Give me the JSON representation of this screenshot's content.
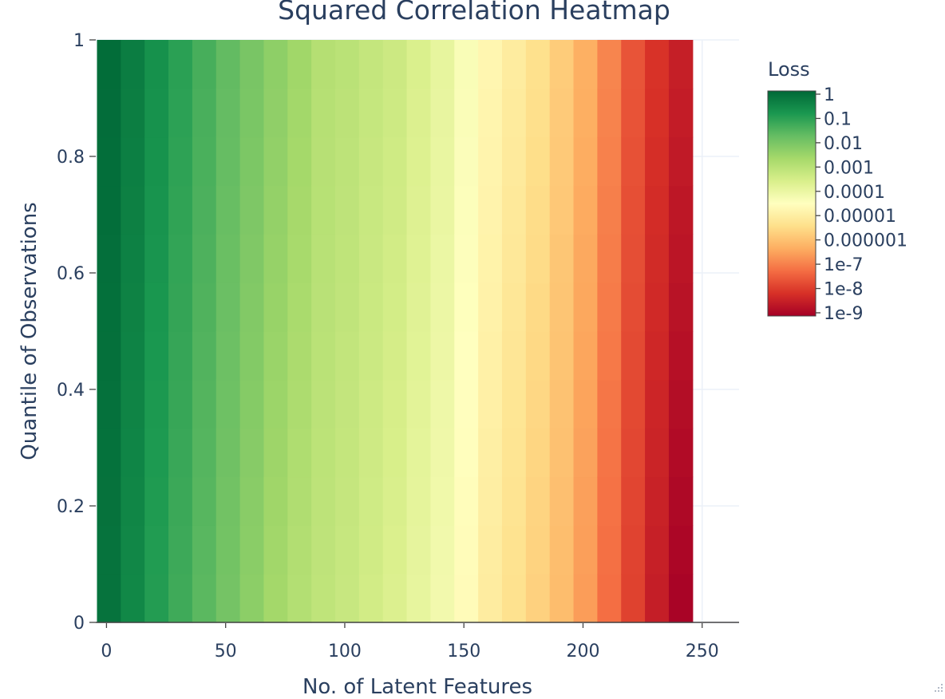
{
  "chart_data": {
    "type": "heatmap",
    "title": "Squared Correlation Heatmap",
    "xlabel": "No. of Latent Features",
    "ylabel": "Quantile of Observations",
    "xlim": [
      -4.5,
      265.5
    ],
    "ylim": [
      0,
      1
    ],
    "x_ticks": [
      "0",
      "50",
      "100",
      "150",
      "200",
      "250"
    ],
    "x_tick_values": [
      0,
      50,
      100,
      150,
      200,
      250
    ],
    "y_ticks": [
      "0",
      "0.2",
      "0.4",
      "0.6",
      "0.8",
      "1"
    ],
    "y_tick_values": [
      0,
      0.2,
      0.4,
      0.6,
      0.8,
      1
    ],
    "x": [
      1,
      11,
      21,
      31,
      41,
      51,
      61,
      71,
      81,
      91,
      101,
      111,
      121,
      131,
      141,
      151,
      161,
      171,
      181,
      191,
      201,
      211,
      221,
      231,
      241
    ],
    "z_log10_top": [
      -0.08,
      -0.38,
      -0.75,
      -1.08,
      -1.42,
      -1.75,
      -2.05,
      -2.35,
      -2.62,
      -2.95,
      -3.05,
      -3.22,
      -3.35,
      -3.62,
      -3.92,
      -4.35,
      -4.75,
      -5.05,
      -5.35,
      -5.75,
      -6.25,
      -6.85,
      -7.55,
      -8.05,
      -8.4
    ],
    "z_log10_bottom": [
      -0.22,
      -0.6,
      -1.02,
      -1.35,
      -1.68,
      -2.02,
      -2.35,
      -2.68,
      -2.95,
      -3.15,
      -3.3,
      -3.48,
      -3.68,
      -3.95,
      -4.2,
      -4.62,
      -5.05,
      -5.35,
      -5.68,
      -6.05,
      -6.55,
      -7.2,
      -7.85,
      -8.45,
      -8.95
    ],
    "grid": true,
    "colorbar": {
      "title": "Loss",
      "scale": "log",
      "ticks": [
        "1",
        "0.1",
        "0.01",
        "0.001",
        "0.0001",
        "0.00001",
        "0.000001",
        "1e-7",
        "1e-8",
        "1e-9"
      ],
      "tick_exponents": [
        0,
        -1,
        -2,
        -3,
        -4,
        -5,
        -6,
        -7,
        -8,
        -9
      ],
      "colorscale": [
        "#a50026",
        "#d73027",
        "#f46d43",
        "#fdae61",
        "#fee08b",
        "#ffffbf",
        "#d9ef8b",
        "#a6d96a",
        "#66bd63",
        "#1a9850",
        "#006837"
      ],
      "placement": "right"
    }
  }
}
